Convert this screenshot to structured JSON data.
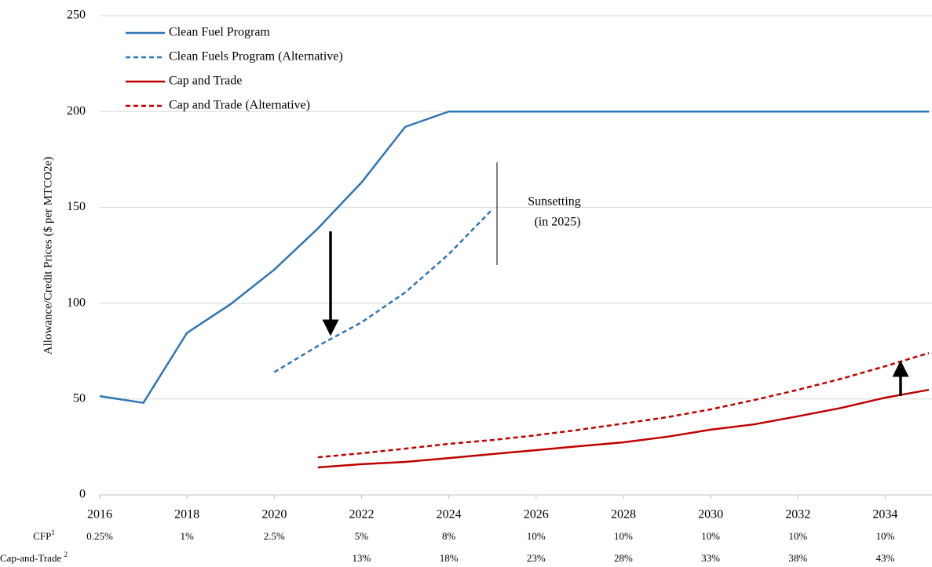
{
  "chart_data": {
    "type": "line",
    "y_label": "Allowance/Credit Prices ($ per MTCO2e)",
    "x": [
      2016,
      2017,
      2018,
      2019,
      2020,
      2021,
      2022,
      2023,
      2024,
      2025,
      2026,
      2027,
      2028,
      2029,
      2030,
      2031,
      2032,
      2033,
      2034,
      2035
    ],
    "series": [
      {
        "name": "Clean Fuel Program",
        "color": "#2e75b6",
        "dash": false,
        "values": [
          51.5,
          48,
          84.5,
          99.5,
          117.5,
          139,
          163,
          192,
          200,
          200,
          200,
          200,
          200,
          200,
          200,
          200,
          200,
          200,
          200,
          200
        ]
      },
      {
        "name": "Clean Fuels Program (Alternative)",
        "color": "#2e75b6",
        "dash": true,
        "values": [
          null,
          null,
          null,
          null,
          64,
          77.7,
          90,
          105.6,
          125.6,
          149,
          null,
          null,
          null,
          null,
          null,
          null,
          null,
          null,
          null,
          null
        ]
      },
      {
        "name": "Cap and Trade",
        "color": "#c00000",
        "dash": false,
        "values": [
          null,
          null,
          null,
          null,
          null,
          14.3,
          16,
          17.2,
          19.2,
          21.3,
          23.3,
          25.4,
          27.4,
          30.3,
          34,
          36.8,
          41,
          45.4,
          50.7,
          54.8
        ]
      },
      {
        "name": "Cap and Trade (Alternative)",
        "color": "#c00000",
        "dash": true,
        "values": [
          null,
          null,
          null,
          null,
          null,
          19.6,
          21.7,
          24.1,
          26.6,
          28.6,
          31.1,
          34,
          37.2,
          40.5,
          44.6,
          49.5,
          54.8,
          60.6,
          67.1,
          74
        ]
      }
    ],
    "xlim": [
      2016,
      2035
    ],
    "xticks": [
      2016,
      2018,
      2020,
      2022,
      2024,
      2026,
      2028,
      2030,
      2032,
      2034
    ],
    "ylim": [
      0,
      250
    ],
    "yticks": [
      0,
      50,
      100,
      150,
      200,
      250
    ],
    "grid": true,
    "legend": "upper left",
    "annotations": [
      "Sunsetting",
      "(in 2025)"
    ],
    "bottom_rows": [
      {
        "label": "CFP",
        "superscript": "1",
        "color": "#44699b",
        "cells": [
          "0.25%",
          "1%",
          "2.5%",
          "5%",
          "8%",
          "10%",
          "10%",
          "10%",
          "10%",
          "10%"
        ]
      },
      {
        "label": "Cap-and-Trade ",
        "superscript": "2",
        "color": "#c00000",
        "cells": [
          null,
          null,
          null,
          "13%",
          "18%",
          "23%",
          "28%",
          "33%",
          "38%",
          "43%"
        ]
      }
    ]
  }
}
